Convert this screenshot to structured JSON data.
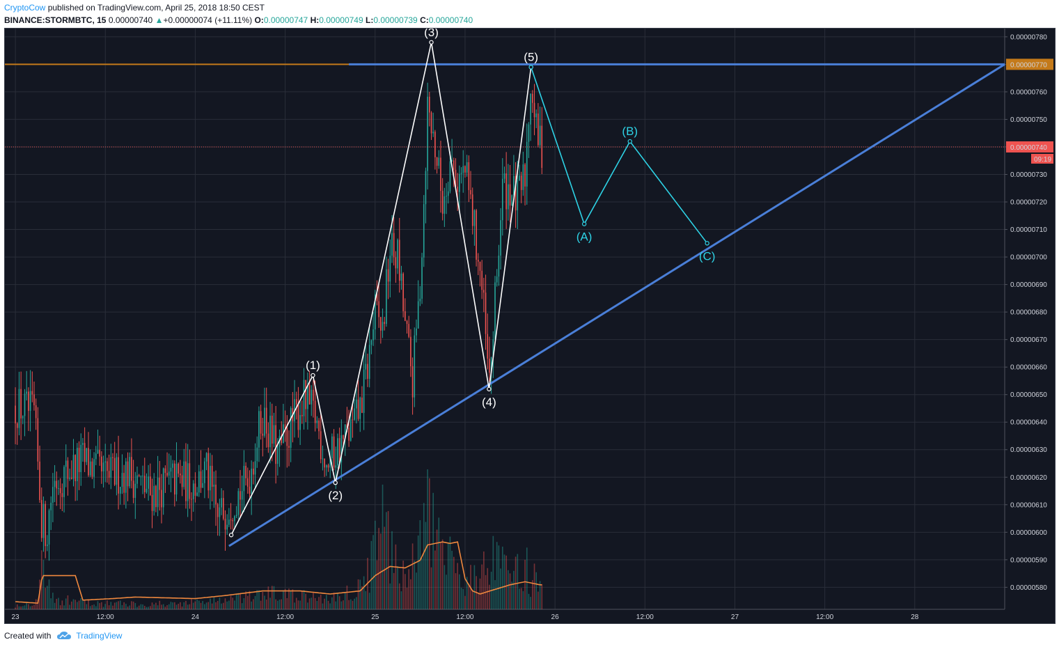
{
  "header": {
    "author": "CryptoCow",
    "published": " published on TradingView.com, April 25, 2018 18:50 CEST",
    "symbol": "BINANCE:STORMBTC, 15",
    "last": "0.00000740",
    "change": "+0.00000074 (+11.11%)",
    "o_label": "O:",
    "o_value": "0.00000747",
    "h_label": "H:",
    "h_value": "0.00000749",
    "l_label": "L:",
    "l_value": "0.00000739",
    "c_label": "C:",
    "c_value": "0.00000740"
  },
  "footer": {
    "created_with": "Created with",
    "brand": "TradingView"
  },
  "colors": {
    "background": "#131722",
    "grid": "#2a2e39",
    "up": "#26a69a",
    "down": "#ef5350",
    "wave": "#ffffff",
    "abc": "#2ed3e6",
    "trend": "#4a7fd8",
    "resistance": "#c47a1a",
    "volume_ma": "#f0883e",
    "price_line": "#ef5350"
  },
  "chart_data": {
    "type": "candlestick",
    "symbol": "BINANCE:STORMBTC",
    "interval": "15",
    "x_ticks": [
      {
        "t": 0,
        "label": "23"
      },
      {
        "t": 12,
        "label": "12:00"
      },
      {
        "t": 24,
        "label": "24"
      },
      {
        "t": 36,
        "label": "12:00"
      },
      {
        "t": 48,
        "label": "25"
      },
      {
        "t": 60,
        "label": "12:00"
      },
      {
        "t": 72,
        "label": "26"
      },
      {
        "t": 84,
        "label": "12:00"
      },
      {
        "t": 96,
        "label": "27"
      },
      {
        "t": 108,
        "label": "12:00"
      },
      {
        "t": 120,
        "label": "28"
      }
    ],
    "x_range": [
      -1.4,
      132.0
    ],
    "y_range": [
      5.72e-06,
      7.83e-06
    ],
    "y_ticks": [
      "0.00000580",
      "0.00000590",
      "0.00000600",
      "0.00000610",
      "0.00000620",
      "0.00000630",
      "0.00000640",
      "0.00000650",
      "0.00000660",
      "0.00000670",
      "0.00000680",
      "0.00000690",
      "0.00000700",
      "0.00000710",
      "0.00000720",
      "0.00000730",
      "0.00000740",
      "0.00000750",
      "0.00000760",
      "0.00000770",
      "0.00000780"
    ],
    "last_price": {
      "value": 7.4e-06,
      "label": "0.00000740",
      "countdown": "09:19"
    },
    "resistance": {
      "value": 7.7e-06,
      "label": "0.00000770"
    },
    "price_keypoints": [
      [
        0,
        6.46e-06
      ],
      [
        2.5,
        6.43e-06
      ],
      [
        3.5,
        6.05e-06
      ],
      [
        4.2,
        6e-06
      ],
      [
        5,
        6.18e-06
      ],
      [
        7,
        6.22e-06
      ],
      [
        9,
        6.26e-06
      ],
      [
        12,
        6.2e-06
      ],
      [
        15,
        6.22e-06
      ],
      [
        18,
        6.14e-06
      ],
      [
        21,
        6.19e-06
      ],
      [
        24,
        6.18e-06
      ],
      [
        25.5,
        6.22e-06
      ],
      [
        27,
        6.05e-06
      ],
      [
        29,
        6.12e-06
      ],
      [
        31,
        6.18e-06
      ],
      [
        33,
        6.43e-06
      ],
      [
        35,
        6.28e-06
      ],
      [
        37,
        6.4e-06
      ],
      [
        38.5,
        6.48e-06
      ],
      [
        40,
        6.42e-06
      ],
      [
        41.5,
        6.25e-06
      ],
      [
        43,
        6.3e-06
      ],
      [
        45,
        6.38e-06
      ],
      [
        46,
        6.45e-06
      ],
      [
        47,
        6.6e-06
      ],
      [
        48,
        6.8e-06
      ],
      [
        49,
        6.73e-06
      ],
      [
        50,
        7.03e-06
      ],
      [
        51,
        7e-06
      ],
      [
        52,
        6.75e-06
      ],
      [
        53,
        6.55e-06
      ],
      [
        54,
        6.9e-06
      ],
      [
        54.5,
        7.2e-06
      ],
      [
        55,
        7.55e-06
      ],
      [
        56,
        7.4e-06
      ],
      [
        57,
        7.2e-06
      ],
      [
        58,
        7.35e-06
      ],
      [
        59,
        7.28e-06
      ],
      [
        60,
        7.31e-06
      ],
      [
        61,
        7.15e-06
      ],
      [
        62,
        6.95e-06
      ],
      [
        62.5,
        6.8e-06
      ],
      [
        63.2,
        6.52e-06
      ],
      [
        64,
        6.83e-06
      ],
      [
        65,
        7.25e-06
      ],
      [
        66,
        7.25e-06
      ],
      [
        67,
        7.2e-06
      ],
      [
        68,
        7.3e-06
      ],
      [
        68.8,
        7.66e-06
      ],
      [
        69.5,
        7.45e-06
      ],
      [
        70.2,
        7.4e-06
      ]
    ],
    "volume_keypoints": [
      [
        0,
        0.04
      ],
      [
        3,
        0.08
      ],
      [
        3.6,
        0.55
      ],
      [
        5,
        0.1
      ],
      [
        10,
        0.06
      ],
      [
        20,
        0.05
      ],
      [
        26,
        0.08
      ],
      [
        30,
        0.1
      ],
      [
        34,
        0.15
      ],
      [
        38,
        0.12
      ],
      [
        42,
        0.1
      ],
      [
        46,
        0.2
      ],
      [
        48,
        0.55
      ],
      [
        49.5,
        0.9
      ],
      [
        50.5,
        0.4
      ],
      [
        52,
        0.35
      ],
      [
        54,
        0.55
      ],
      [
        55,
        1.0
      ],
      [
        56,
        0.6
      ],
      [
        58,
        0.45
      ],
      [
        60,
        0.3
      ],
      [
        62,
        0.35
      ],
      [
        64,
        0.45
      ],
      [
        66,
        0.3
      ],
      [
        68,
        0.4
      ],
      [
        70,
        0.2
      ]
    ],
    "volume_ma_keypoints": [
      [
        0,
        0.05
      ],
      [
        3,
        0.04
      ],
      [
        3.6,
        0.22
      ],
      [
        8,
        0.22
      ],
      [
        9,
        0.06
      ],
      [
        13,
        0.07
      ],
      [
        16,
        0.08
      ],
      [
        24,
        0.07
      ],
      [
        28,
        0.09
      ],
      [
        33,
        0.12
      ],
      [
        38,
        0.12
      ],
      [
        42,
        0.1
      ],
      [
        46,
        0.12
      ],
      [
        48,
        0.22
      ],
      [
        50,
        0.28
      ],
      [
        52,
        0.27
      ],
      [
        54,
        0.32
      ],
      [
        55,
        0.42
      ],
      [
        57,
        0.44
      ],
      [
        58,
        0.43
      ],
      [
        59,
        0.44
      ],
      [
        60,
        0.2
      ],
      [
        61,
        0.12
      ],
      [
        62,
        0.1
      ],
      [
        64,
        0.13
      ],
      [
        66,
        0.16
      ],
      [
        68,
        0.18
      ],
      [
        70,
        0.16
      ]
    ],
    "elliott_wave": [
      {
        "label": "",
        "t": 28.8,
        "p": 5.99e-06
      },
      {
        "label": "(1)",
        "t": 39.7,
        "p": 6.57e-06
      },
      {
        "label": "(2)",
        "t": 42.7,
        "p": 6.18e-06
      },
      {
        "label": "(3)",
        "t": 55.5,
        "p": 7.78e-06
      },
      {
        "label": "(4)",
        "t": 63.2,
        "p": 6.52e-06
      },
      {
        "label": "(5)",
        "t": 68.8,
        "p": 7.69e-06
      }
    ],
    "abc_correction": [
      {
        "label": "",
        "t": 68.8,
        "p": 7.69e-06
      },
      {
        "label": "(A)",
        "t": 75.9,
        "p": 7.12e-06
      },
      {
        "label": "(B)",
        "t": 82.0,
        "p": 7.42e-06
      },
      {
        "label": "(C)",
        "t": 92.3,
        "p": 7.05e-06
      }
    ],
    "trendline_support": {
      "from": {
        "t": 28.5,
        "p": 5.95e-06
      },
      "to": {
        "t": 132.0,
        "p": 7.7e-06
      }
    },
    "trendline_resistance": {
      "from": {
        "t": 44.5,
        "p": 7.7e-06
      },
      "to": {
        "t": 132.0,
        "p": 7.7e-06
      }
    }
  }
}
